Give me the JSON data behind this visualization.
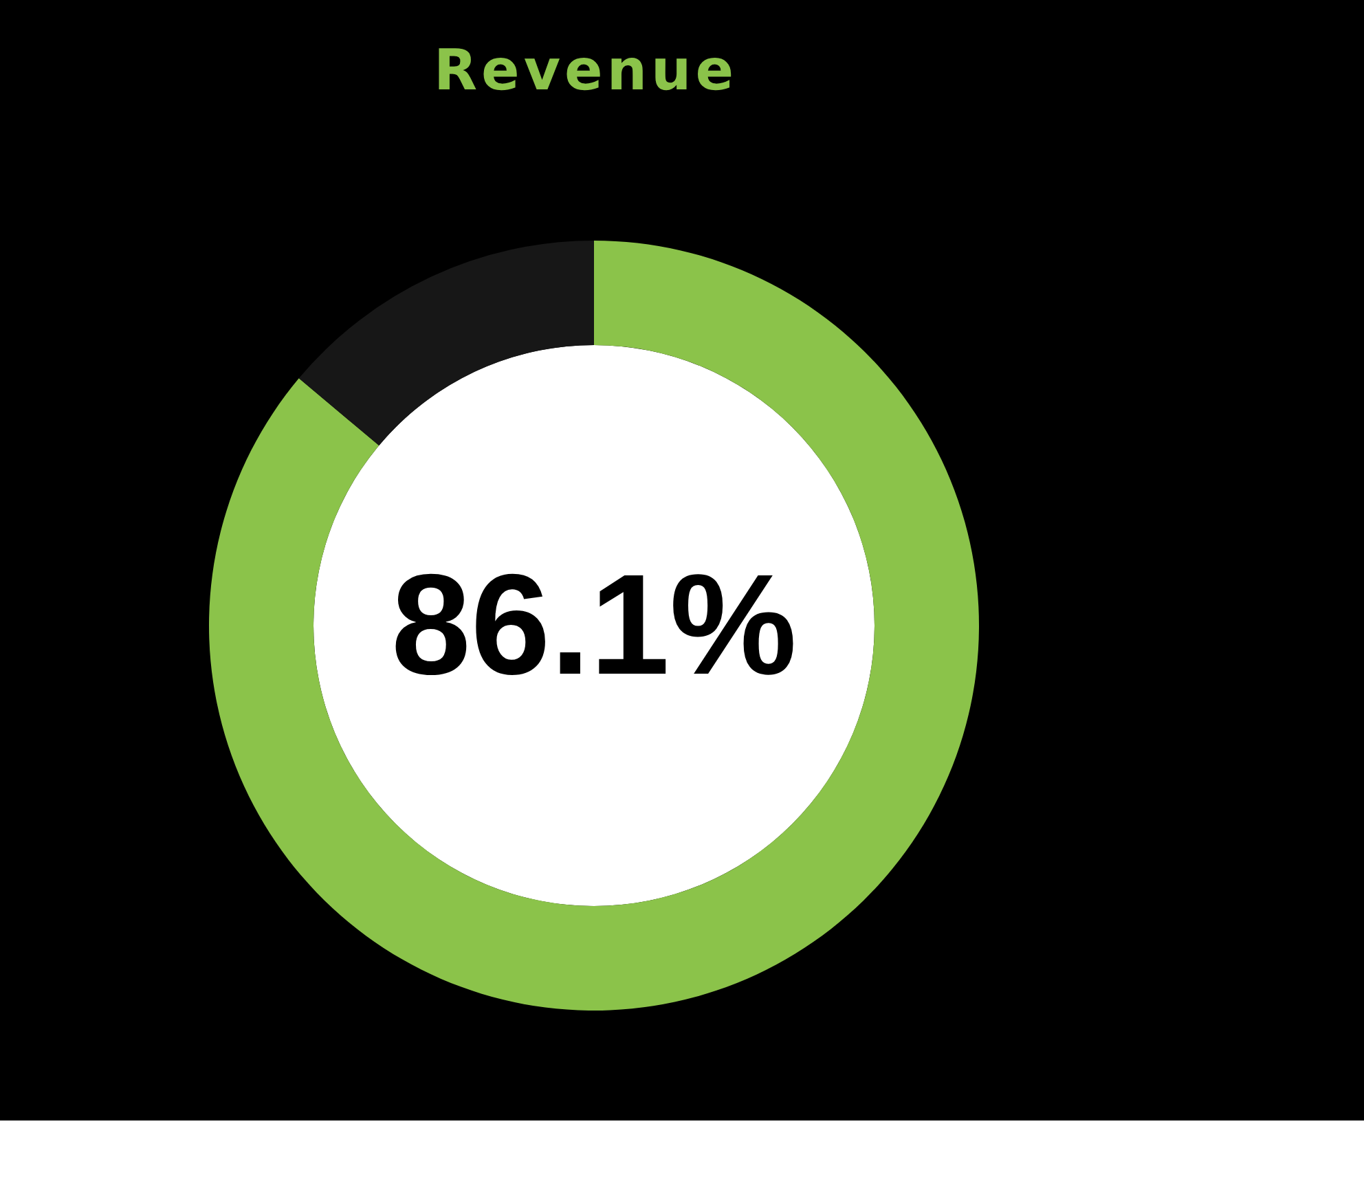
{
  "chart_data": {
    "type": "donut",
    "title": "Revenue",
    "categories": [
      null,
      null
    ],
    "values": [
      86.1,
      13.9
    ],
    "colors": [
      "#8bc34a",
      "#171717"
    ],
    "annotations": [
      "86.1%"
    ]
  }
}
